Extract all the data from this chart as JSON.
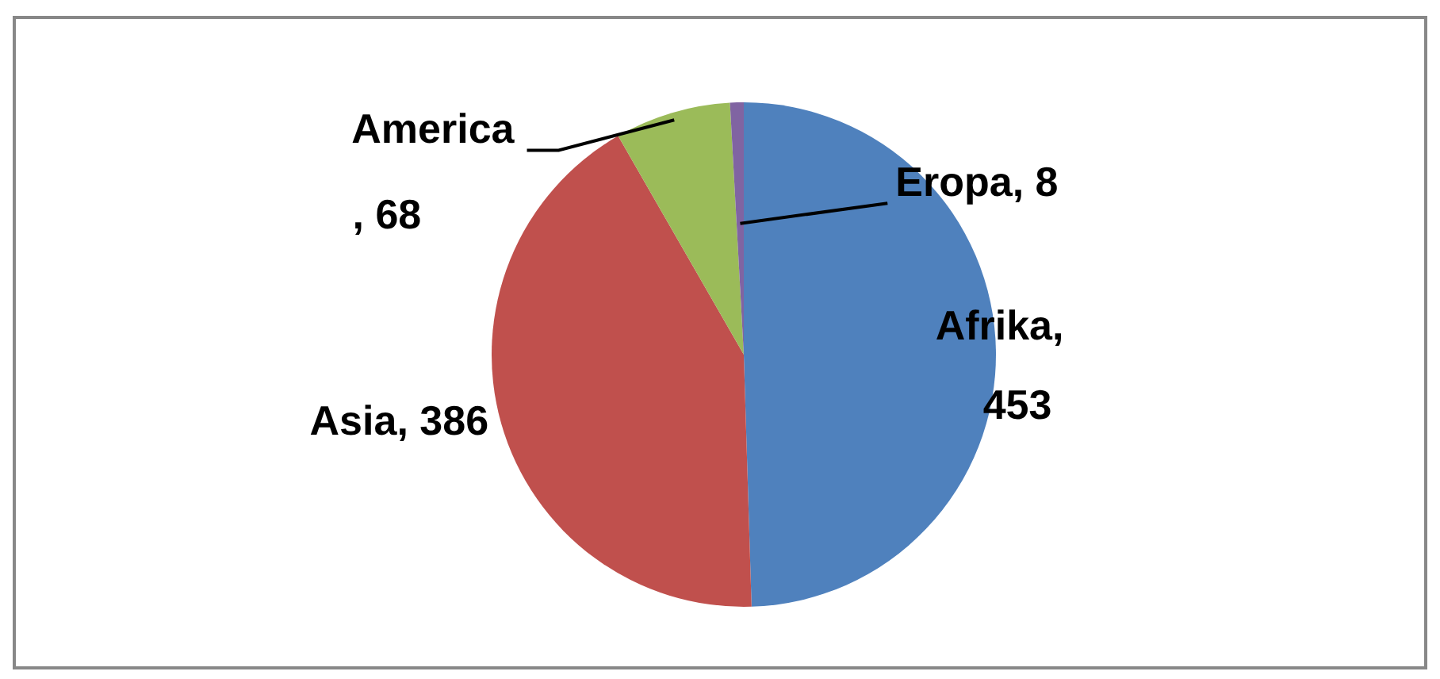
{
  "chart_data": {
    "type": "pie",
    "categories": [
      "Afrika",
      "Asia",
      "America",
      "Eropa"
    ],
    "values": [
      453,
      386,
      68,
      8
    ],
    "value_labels": [
      ", 453",
      ", 386",
      ", 68",
      ", 8"
    ],
    "colors": [
      "#4f81bd",
      "#c0504d",
      "#9bbb59",
      "#8064a2"
    ],
    "legend": false
  }
}
